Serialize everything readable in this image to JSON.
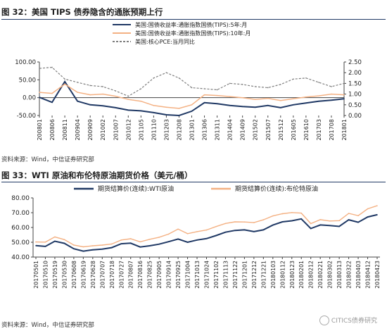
{
  "figures": [
    {
      "title": "图 32：美国 TIPS 债券隐含的通胀预期上行",
      "source": "资料来源：Wind，中信证券研究部"
    },
    {
      "title": "图 33：WTI 原油和布伦特原油期货价格（美元/桶）",
      "source": "资料来源：Wind，中信证券研究部"
    }
  ],
  "watermark": "CITICS债券研究",
  "chart_data": [
    {
      "type": "line",
      "title": "",
      "xlabel": "",
      "ylabel": "",
      "x": [
        "200801",
        "200806",
        "200811",
        "200904",
        "200909",
        "201002",
        "201007",
        "201012",
        "201105",
        "201110",
        "201203",
        "201208",
        "201301",
        "201306",
        "201311",
        "201404",
        "201409",
        "201502",
        "201507",
        "201512",
        "201605",
        "201610",
        "201703",
        "201708",
        "201801"
      ],
      "ylim_left": [
        -50,
        100
      ],
      "yticks_left": [
        "100.00",
        "50.00",
        "0.00",
        "-50.00"
      ],
      "ylim_right": [
        0,
        2.5
      ],
      "yticks_right": [
        "2.50",
        "2.00",
        "1.50",
        "1.00",
        "0.50",
        "0.00"
      ],
      "grid": false,
      "legend_position": "top-right",
      "series": [
        {
          "name": "美国:国债收益率:通胀指数国债(TIPS):5年:月",
          "axis": "left",
          "color": "#1f3864",
          "style": "solid",
          "values": [
            1,
            -13,
            45,
            -10,
            -20,
            -23,
            -28,
            -35,
            -37,
            -42,
            -48,
            -50,
            -38,
            -14,
            -17,
            -22,
            -25,
            -27,
            -22,
            -28,
            -20,
            -15,
            -10,
            -7,
            -3
          ]
        },
        {
          "name": "美国:国债收益率:通胀指数国债(TIPS):10年:月",
          "axis": "left",
          "color": "#f4b183",
          "style": "solid",
          "values": [
            15,
            12,
            38,
            15,
            8,
            10,
            4,
            -5,
            -10,
            -22,
            -27,
            -30,
            -20,
            8,
            6,
            3,
            0,
            -5,
            -2,
            -8,
            -3,
            2,
            5,
            10,
            8
          ]
        },
        {
          "name": "美国:核心PCE:当月同比",
          "axis": "right",
          "color": "#7f7f7f",
          "style": "dashed",
          "values": [
            2.2,
            2.25,
            1.7,
            1.55,
            1.4,
            1.35,
            1.15,
            0.9,
            1.25,
            1.75,
            2.0,
            1.75,
            1.3,
            1.25,
            1.2,
            1.5,
            1.45,
            1.35,
            1.3,
            1.45,
            1.7,
            1.75,
            1.55,
            1.35,
            1.5
          ]
        }
      ]
    },
    {
      "type": "line",
      "title": "",
      "xlabel": "",
      "ylabel": "",
      "x": [
        "20170501",
        "20170510",
        "20170519",
        "20170530",
        "20170608",
        "20170619",
        "20170628",
        "20170707",
        "20170718",
        "20170727",
        "20170807",
        "20170816",
        "20170825",
        "20170905",
        "20170914",
        "20170925",
        "20171004",
        "20171013",
        "20171024",
        "20171102",
        "20171113",
        "20171122",
        "20171201",
        "20171212",
        "20171221",
        "20180103",
        "20180112",
        "20180123",
        "20180201",
        "20180212",
        "20180221",
        "20180302",
        "20180313",
        "20180322",
        "20180403",
        "20180412",
        "20180423"
      ],
      "ylim": [
        40,
        80
      ],
      "yticks": [
        "80.00",
        "70.00",
        "60.00",
        "50.00",
        "40.00"
      ],
      "grid": false,
      "legend_position": "top",
      "series": [
        {
          "name": "期货结算价(连续):WTI原油",
          "color": "#1f3864",
          "style": "solid",
          "values": [
            47.7,
            47.2,
            50.7,
            49.3,
            45.6,
            44.0,
            44.9,
            45.4,
            46.4,
            49.0,
            49.4,
            46.8,
            47.6,
            48.7,
            50.4,
            52.2,
            50.0,
            51.5,
            52.5,
            54.5,
            56.8,
            58.0,
            58.4,
            57.2,
            58.4,
            61.6,
            63.8,
            64.5,
            65.8,
            59.3,
            61.7,
            61.3,
            60.7,
            65.2,
            63.5,
            67.1,
            68.6
          ]
        },
        {
          "name": "期货结算价(连续):布伦特原油",
          "color": "#f4b183",
          "style": "solid",
          "values": [
            50.2,
            50.1,
            53.6,
            51.8,
            48.1,
            46.9,
            47.6,
            48.1,
            48.8,
            51.5,
            52.4,
            50.3,
            52.0,
            53.4,
            55.5,
            58.9,
            55.8,
            57.2,
            58.3,
            60.6,
            62.7,
            63.8,
            63.7,
            63.3,
            65.2,
            67.8,
            69.3,
            70.1,
            69.7,
            62.6,
            65.3,
            64.4,
            64.6,
            69.5,
            68.0,
            72.6,
            74.7
          ]
        }
      ]
    }
  ]
}
